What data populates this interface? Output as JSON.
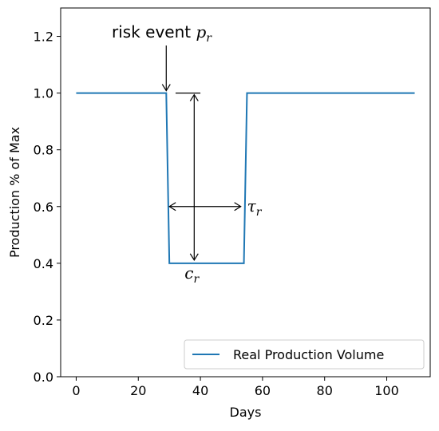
{
  "chart_data": {
    "type": "line",
    "xlabel": "Days",
    "ylabel": "Production % of Max",
    "xlim": [
      -5,
      114
    ],
    "ylim": [
      0,
      1.3
    ],
    "x_ticks": [
      0,
      20,
      40,
      60,
      80,
      100
    ],
    "y_ticks": [
      0.0,
      0.2,
      0.4,
      0.6,
      0.8,
      1.0,
      1.2
    ],
    "x_tick_labels": [
      "0",
      "20",
      "40",
      "60",
      "80",
      "100"
    ],
    "y_tick_labels": [
      "0.0",
      "0.2",
      "0.4",
      "0.6",
      "0.8",
      "1.0",
      "1.2"
    ],
    "grid": false,
    "legend_position": "lower-right",
    "series": [
      {
        "name": "Real Production Volume",
        "color": "#1f77b4",
        "x": [
          0,
          29,
          30,
          54,
          55,
          109
        ],
        "y": [
          1.0,
          1.0,
          0.4,
          0.4,
          1.0,
          1.0
        ]
      }
    ],
    "annotations": {
      "risk_event": {
        "text": "risk event ",
        "symbol": "p",
        "subscript": "r"
      },
      "capacity": {
        "symbol": "c",
        "subscript": "r"
      },
      "duration": {
        "symbol": "τ",
        "subscript": "r"
      }
    }
  }
}
